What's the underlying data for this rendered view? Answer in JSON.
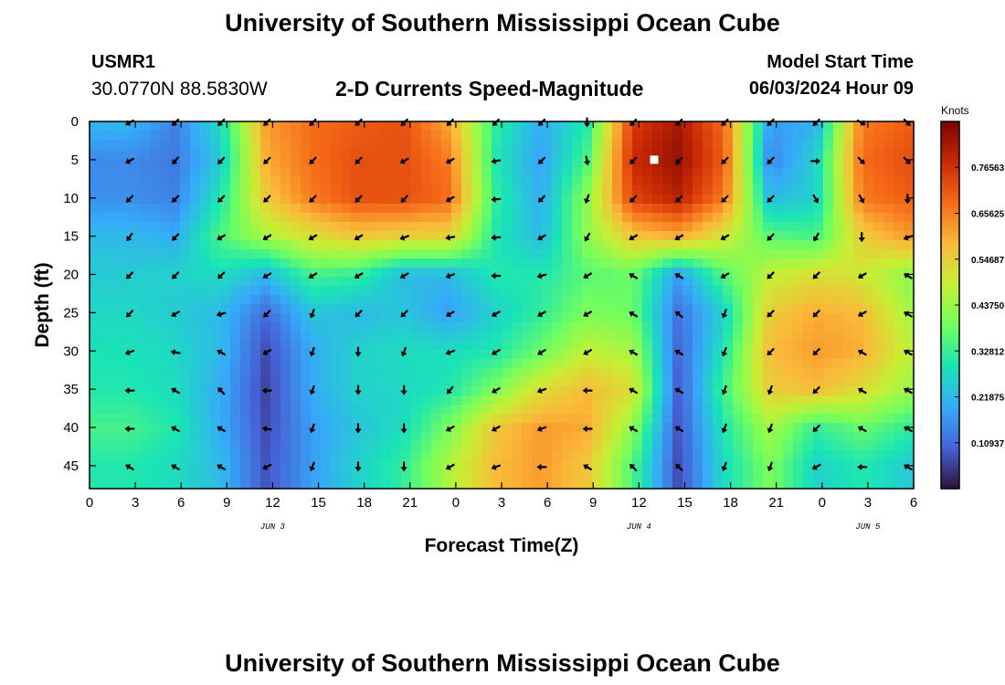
{
  "header": {
    "title": "University of Southern Mississippi Ocean Cube",
    "station_id": "USMR1",
    "coords": "30.0770N  88.5830W",
    "model_label": "Model Start Time",
    "model_time": "06/03/2024 Hour 09",
    "subtitle": "2-D Currents Speed-Magnitude"
  },
  "footer": {
    "title": "University of Southern Mississippi Ocean Cube"
  },
  "colors": {
    "colormap": [
      "#30123b",
      "#4662d7",
      "#36aaf9",
      "#1ae4b6",
      "#72fe5e",
      "#c7ef34",
      "#faba39",
      "#f66b19",
      "#cb2a04",
      "#7a0403"
    ],
    "arrow": "#000000",
    "marker": "#ffffff"
  },
  "chart_data": {
    "type": "heatmap",
    "title": "2-D Currents Speed-Magnitude",
    "xlabel": "Forecast Time(Z)",
    "ylabel": "Depth (ft)",
    "x_ticks": [
      "0",
      "3",
      "6",
      "9",
      "12",
      "15",
      "18",
      "21",
      "0",
      "3",
      "6",
      "9",
      "12",
      "15",
      "18",
      "21",
      "0",
      "3",
      "6"
    ],
    "x_range_hours": [
      0,
      54
    ],
    "date_labels": [
      {
        "text": "JUN 3",
        "hour": 12
      },
      {
        "text": "JUN 4",
        "hour": 36
      },
      {
        "text": "JUN 5",
        "hour": 51
      }
    ],
    "y_ticks": [
      0,
      5,
      10,
      15,
      20,
      25,
      30,
      35,
      40,
      45
    ],
    "y_range_ft": [
      0,
      48
    ],
    "depth_levels_ft": [
      0,
      5,
      10,
      15,
      20,
      25,
      30,
      35,
      40,
      45
    ],
    "time_steps_hours": [
      2.6,
      5.6,
      8.6,
      11.6,
      14.6,
      17.6,
      20.6,
      23.6,
      26.6,
      29.6,
      32.6,
      35.6,
      38.6,
      41.6,
      44.6,
      47.6,
      50.6,
      53.6
    ],
    "colorbar": {
      "label": "Knots",
      "range": [
        0,
        0.875
      ],
      "ticks": [
        "0.76563",
        "0.65625",
        "0.54687",
        "0.43750",
        "0.32812",
        "0.21875",
        "0.10937"
      ]
    },
    "current_time_marker": {
      "hour": 37,
      "depth_ft": 5
    },
    "speed_knots": [
      [
        0.22,
        0.14,
        0.28,
        0.62,
        0.68,
        0.7,
        0.72,
        0.6,
        0.32,
        0.2,
        0.3,
        0.75,
        0.82,
        0.68,
        0.18,
        0.2,
        0.66,
        0.7
      ],
      [
        0.15,
        0.13,
        0.25,
        0.6,
        0.68,
        0.72,
        0.72,
        0.66,
        0.3,
        0.18,
        0.35,
        0.78,
        0.84,
        0.7,
        0.14,
        0.26,
        0.68,
        0.72
      ],
      [
        0.16,
        0.14,
        0.3,
        0.56,
        0.66,
        0.72,
        0.72,
        0.68,
        0.32,
        0.2,
        0.42,
        0.74,
        0.8,
        0.66,
        0.22,
        0.26,
        0.66,
        0.7
      ],
      [
        0.22,
        0.2,
        0.35,
        0.45,
        0.52,
        0.56,
        0.54,
        0.54,
        0.3,
        0.22,
        0.42,
        0.56,
        0.6,
        0.5,
        0.36,
        0.34,
        0.55,
        0.62
      ],
      [
        0.25,
        0.26,
        0.28,
        0.22,
        0.34,
        0.32,
        0.22,
        0.22,
        0.3,
        0.3,
        0.36,
        0.38,
        0.18,
        0.36,
        0.48,
        0.52,
        0.5,
        0.42
      ],
      [
        0.27,
        0.25,
        0.22,
        0.11,
        0.24,
        0.22,
        0.24,
        0.18,
        0.26,
        0.32,
        0.4,
        0.38,
        0.12,
        0.26,
        0.55,
        0.6,
        0.58,
        0.45
      ],
      [
        0.29,
        0.27,
        0.22,
        0.07,
        0.2,
        0.26,
        0.28,
        0.28,
        0.3,
        0.38,
        0.48,
        0.45,
        0.1,
        0.3,
        0.58,
        0.62,
        0.6,
        0.48
      ],
      [
        0.3,
        0.28,
        0.2,
        0.06,
        0.2,
        0.26,
        0.27,
        0.3,
        0.4,
        0.52,
        0.58,
        0.52,
        0.09,
        0.34,
        0.55,
        0.58,
        0.52,
        0.44
      ],
      [
        0.34,
        0.3,
        0.2,
        0.07,
        0.18,
        0.24,
        0.28,
        0.4,
        0.56,
        0.62,
        0.6,
        0.42,
        0.08,
        0.3,
        0.45,
        0.32,
        0.38,
        0.32
      ],
      [
        0.3,
        0.28,
        0.22,
        0.08,
        0.18,
        0.26,
        0.32,
        0.46,
        0.58,
        0.62,
        0.56,
        0.35,
        0.07,
        0.28,
        0.4,
        0.26,
        0.3,
        0.25
      ]
    ],
    "direction_deg": [
      [
        240,
        225,
        225,
        225,
        225,
        225,
        225,
        225,
        225,
        225,
        180,
        225,
        225,
        225,
        225,
        225,
        120,
        135
      ],
      [
        240,
        220,
        225,
        225,
        225,
        225,
        240,
        240,
        260,
        225,
        170,
        225,
        225,
        225,
        225,
        90,
        135,
        135
      ],
      [
        225,
        225,
        225,
        225,
        225,
        225,
        225,
        240,
        265,
        225,
        200,
        225,
        225,
        225,
        225,
        150,
        150,
        180
      ],
      [
        215,
        225,
        240,
        240,
        240,
        240,
        250,
        260,
        265,
        240,
        210,
        240,
        240,
        240,
        225,
        210,
        180,
        250
      ],
      [
        225,
        225,
        225,
        240,
        240,
        240,
        240,
        250,
        270,
        255,
        240,
        300,
        300,
        240,
        225,
        225,
        240,
        300
      ],
      [
        225,
        240,
        255,
        225,
        200,
        225,
        225,
        240,
        240,
        240,
        240,
        300,
        310,
        200,
        225,
        225,
        240,
        300
      ],
      [
        250,
        280,
        300,
        240,
        200,
        180,
        200,
        250,
        240,
        240,
        240,
        300,
        300,
        200,
        225,
        225,
        300,
        300
      ],
      [
        270,
        300,
        315,
        270,
        200,
        180,
        180,
        220,
        240,
        250,
        270,
        300,
        300,
        200,
        200,
        225,
        300,
        300
      ],
      [
        270,
        300,
        300,
        280,
        200,
        180,
        180,
        240,
        240,
        250,
        270,
        300,
        300,
        200,
        200,
        225,
        300,
        300
      ],
      [
        300,
        300,
        300,
        240,
        200,
        180,
        180,
        240,
        250,
        270,
        300,
        315,
        310,
        200,
        200,
        240,
        270,
        300
      ]
    ]
  }
}
